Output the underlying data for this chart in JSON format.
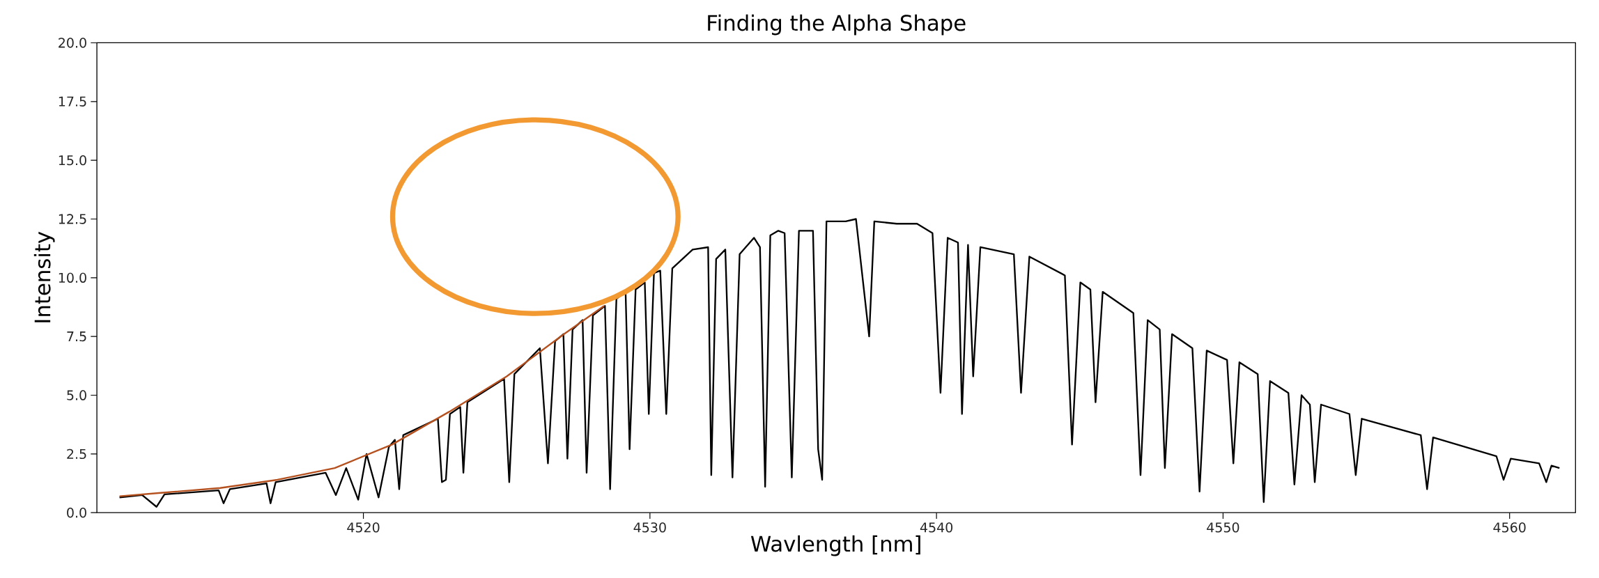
{
  "chart_data": {
    "type": "line",
    "title": "Finding the Alpha Shape",
    "xlabel": "Wavlength [nm]",
    "ylabel": "Intensity",
    "xlim": [
      4510.7,
      4562.3
    ],
    "ylim": [
      0,
      20
    ],
    "xticks": [
      4520,
      4530,
      4540,
      4550,
      4560
    ],
    "yticks": [
      {
        "value": 0,
        "label": "0.0"
      },
      {
        "value": 2.5,
        "label": "2.5"
      },
      {
        "value": 5,
        "label": "5.0"
      },
      {
        "value": 7.5,
        "label": "7.5"
      },
      {
        "value": 10,
        "label": "10.0"
      },
      {
        "value": 12.5,
        "label": "12.5"
      },
      {
        "value": 15,
        "label": "15.0"
      },
      {
        "value": 17.5,
        "label": "17.5"
      },
      {
        "value": 20,
        "label": "20.0"
      }
    ],
    "series": [
      {
        "color": "#000000",
        "x": [
          4511.49,
          4512.28,
          4512.78,
          4513.06,
          4514.95,
          4515.12,
          4515.34,
          4516.62,
          4516.76,
          4516.94,
          4518.68,
          4519.04,
          4519.4,
          4519.82,
          4520.11,
          4520.53,
          4520.89,
          4521.1,
          4521.25,
          4521.39,
          4522.6,
          4522.74,
          4522.88,
          4523.02,
          4523.38,
          4523.49,
          4523.63,
          4524.91,
          4525.09,
          4525.27,
          4526.16,
          4526.44,
          4526.69,
          4526.98,
          4527.12,
          4527.3,
          4527.65,
          4527.79,
          4528.01,
          4528.43,
          4528.61,
          4528.83,
          4529.15,
          4529.29,
          4529.5,
          4529.82,
          4529.96,
          4530.14,
          4530.36,
          4530.57,
          4530.78,
          4531.49,
          4532.03,
          4532.14,
          4532.31,
          4532.63,
          4532.88,
          4533.13,
          4533.63,
          4533.84,
          4534.02,
          4534.2,
          4534.48,
          4534.7,
          4534.95,
          4535.2,
          4535.69,
          4535.87,
          4536.01,
          4536.16,
          4536.83,
          4537.19,
          4537.65,
          4537.83,
          4538.61,
          4539.32,
          4539.86,
          4540.14,
          4540.39,
          4540.75,
          4540.89,
          4541.1,
          4541.28,
          4541.53,
          4542.7,
          4542.95,
          4543.24,
          4544.48,
          4544.73,
          4545.02,
          4545.37,
          4545.55,
          4545.8,
          4546.87,
          4547.12,
          4547.37,
          4547.79,
          4547.97,
          4548.22,
          4548.93,
          4549.18,
          4549.43,
          4550.14,
          4550.36,
          4550.57,
          4551.21,
          4551.42,
          4551.64,
          4552.28,
          4552.49,
          4552.74,
          4553.03,
          4553.2,
          4553.42,
          4554.41,
          4554.63,
          4554.84,
          4556.9,
          4557.12,
          4557.33,
          4559.54,
          4559.79,
          4560.04,
          4561.03,
          4561.28,
          4561.46,
          4561.74
        ],
        "values": [
          0.65,
          0.75,
          0.25,
          0.78,
          0.95,
          0.4,
          1.0,
          1.25,
          0.4,
          1.3,
          1.7,
          0.75,
          1.9,
          0.55,
          2.5,
          0.65,
          2.8,
          3.1,
          1.0,
          3.3,
          4.0,
          1.3,
          1.4,
          4.2,
          4.5,
          1.7,
          4.7,
          5.7,
          1.3,
          5.9,
          7.0,
          2.1,
          7.3,
          7.6,
          2.3,
          7.8,
          8.2,
          1.7,
          8.4,
          8.8,
          1.0,
          9.1,
          9.4,
          2.7,
          9.5,
          9.8,
          4.2,
          10.2,
          10.3,
          4.2,
          10.4,
          11.2,
          11.3,
          1.6,
          10.8,
          11.2,
          1.5,
          11.0,
          11.7,
          11.3,
          1.1,
          11.8,
          12.0,
          11.9,
          1.5,
          12.0,
          12.0,
          2.7,
          1.4,
          12.4,
          12.4,
          12.5,
          7.5,
          12.4,
          12.3,
          12.3,
          11.9,
          5.1,
          11.7,
          11.5,
          4.2,
          11.4,
          5.8,
          11.3,
          11.0,
          5.1,
          10.9,
          10.1,
          2.9,
          9.8,
          9.5,
          4.7,
          9.4,
          8.5,
          1.6,
          8.2,
          7.8,
          1.9,
          7.6,
          7.0,
          0.9,
          6.9,
          6.5,
          2.1,
          6.4,
          5.9,
          0.45,
          5.6,
          5.1,
          1.2,
          5.0,
          4.6,
          1.3,
          4.6,
          4.2,
          1.6,
          4.0,
          3.3,
          1.0,
          3.2,
          2.4,
          1.4,
          2.3,
          2.1,
          1.3,
          2.0,
          1.9
        ]
      },
      {
        "color": "#b5501f",
        "x": [
          4511.49,
          4513.0,
          4515.0,
          4517.0,
          4519.0,
          4521.0,
          4523.0,
          4525.0,
          4527.0,
          4528.4
        ],
        "values": [
          0.7,
          0.85,
          1.05,
          1.4,
          1.9,
          2.9,
          4.3,
          5.8,
          7.6,
          8.8
        ]
      }
    ]
  }
}
